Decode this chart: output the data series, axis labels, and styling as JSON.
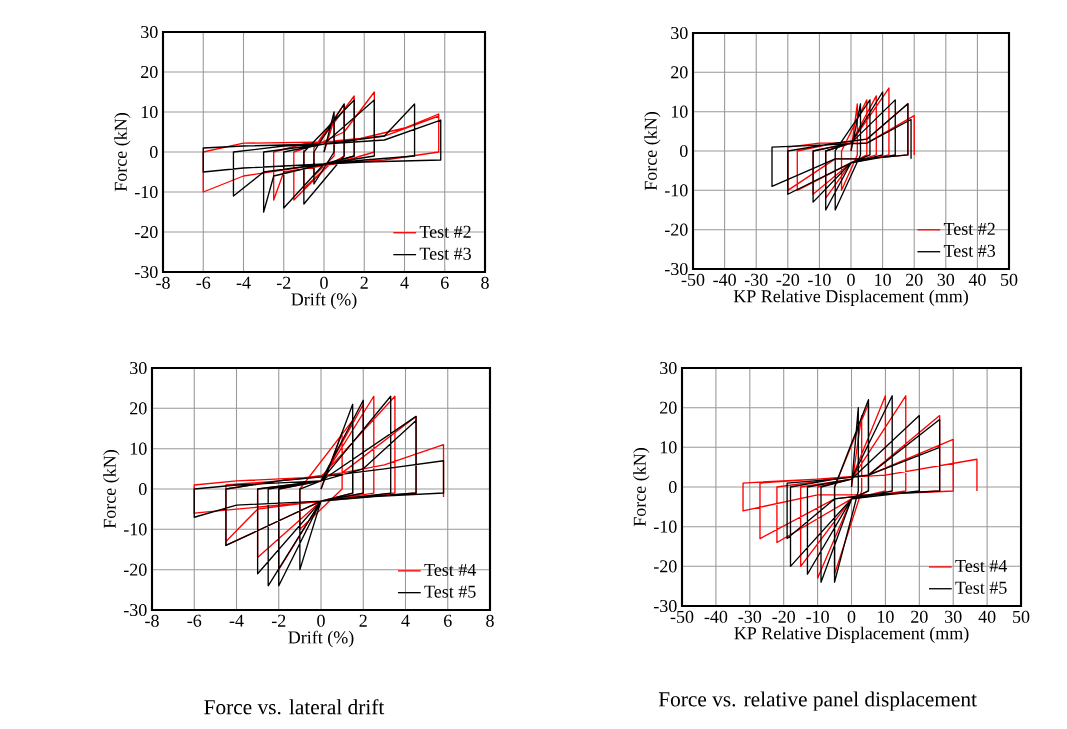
{
  "chart_data": [
    {
      "type": "line",
      "xlabel": "Drift (%)",
      "ylabel": "Force (kN)",
      "xlim": [
        -8,
        8
      ],
      "ylim": [
        -30,
        30
      ],
      "xticks": [
        -8,
        -6,
        -4,
        -2,
        0,
        2,
        4,
        6,
        8
      ],
      "yticks": [
        -30,
        -20,
        -10,
        0,
        10,
        20,
        30
      ],
      "grid": true,
      "legend": "bottom right",
      "series": [
        {
          "name": "Test #2",
          "color": "#ff0000",
          "x": [
            0,
            0.5,
            0.5,
            -0.5,
            -0.5,
            1,
            1,
            0.3,
            -1,
            -1,
            -0.3,
            1.5,
            1.5,
            0.3,
            -1.5,
            -1.5,
            -0.3,
            1,
            2.5,
            2.5,
            0.5,
            -2,
            -2.5,
            -2.5,
            -1,
            1.5,
            4,
            5.7,
            5.7,
            3,
            0,
            -4,
            -6,
            -6,
            -4,
            0,
            3,
            5.7,
            5.7
          ],
          "values": [
            0,
            8,
            -1,
            -6,
            1,
            12,
            -1,
            -3,
            -9,
            1,
            2,
            14,
            -1,
            -3,
            -12,
            0,
            2,
            5,
            15,
            0,
            -3,
            -5,
            -12,
            0,
            2,
            3,
            6,
            9.5,
            0,
            -2,
            -3,
            -6,
            -10,
            0,
            2.2,
            2.5,
            4,
            9,
            6
          ]
        },
        {
          "name": "Test #3",
          "color": "#000000",
          "x": [
            0,
            0.5,
            0.5,
            -0.5,
            -0.5,
            1,
            1,
            -1,
            -1,
            1.5,
            1.5,
            0,
            -2,
            -2,
            0,
            2.5,
            2.5,
            0,
            -2.5,
            -3,
            -3,
            0,
            3,
            4.5,
            4.5,
            2,
            0,
            -3,
            -4.5,
            -4.5,
            -2,
            0,
            3,
            5.8,
            5.8,
            2,
            0,
            -4,
            -6,
            -6,
            -4,
            0
          ],
          "values": [
            0,
            10,
            0,
            -8,
            0,
            12,
            -1,
            -13,
            0,
            13,
            -1,
            -3,
            -14,
            0,
            2,
            13,
            -1,
            -3,
            -6,
            -15,
            0,
            2,
            4,
            12,
            -1,
            -2,
            -3,
            -5,
            -11,
            0,
            1.5,
            2,
            3,
            8,
            -2,
            -2.5,
            -3,
            -4,
            -5,
            1,
            1.5,
            2
          ]
        }
      ]
    },
    {
      "type": "line",
      "xlabel": "KP Relative Displacement (mm)",
      "ylabel": "Force (kN)",
      "xlim": [
        -50,
        50
      ],
      "ylim": [
        -30,
        30
      ],
      "xticks": [
        -50,
        -40,
        -30,
        -20,
        -10,
        0,
        10,
        20,
        30,
        40,
        50
      ],
      "yticks": [
        -30,
        -20,
        -10,
        0,
        10,
        20,
        30
      ],
      "grid": true,
      "legend": "bottom right",
      "series": [
        {
          "name": "Test #2",
          "color": "#ff0000",
          "x": [
            0,
            2,
            2,
            -3,
            -3,
            5,
            5,
            0,
            -8,
            -8,
            0,
            8,
            8,
            0,
            -12,
            -12,
            0,
            12,
            12,
            0,
            -17,
            -17,
            -5,
            5,
            18,
            18,
            5,
            -5,
            -20,
            -20,
            -10,
            5,
            20,
            20
          ],
          "values": [
            0,
            12,
            -1,
            -10,
            0,
            13,
            -1,
            -3,
            -12,
            0,
            2,
            14,
            -1,
            -3,
            -11,
            0,
            2,
            16,
            -1,
            -3,
            -10,
            0,
            2,
            3,
            12,
            -1,
            -2,
            -2,
            -10,
            1,
            2,
            2,
            9,
            -1
          ]
        },
        {
          "name": "Test #3",
          "color": "#000000",
          "x": [
            0,
            3,
            3,
            -5,
            -5,
            6,
            6,
            0,
            -8,
            -8,
            0,
            10,
            10,
            0,
            -12,
            -12,
            0,
            14,
            14,
            0,
            -20,
            -20,
            -5,
            5,
            18,
            18,
            5,
            -5,
            -25,
            -25,
            -10,
            5,
            19,
            19
          ],
          "values": [
            0,
            12,
            -1,
            -15,
            0,
            13,
            -1,
            -3,
            -15,
            0,
            2,
            15,
            -1,
            -3,
            -13,
            0,
            2,
            13,
            -1,
            -3,
            -11,
            0,
            2,
            3,
            12,
            -1,
            -2,
            -2,
            -9,
            1,
            1.5,
            2,
            8,
            -2
          ]
        }
      ]
    },
    {
      "type": "line",
      "xlabel": "Drift (%)",
      "ylabel": "Force (kN)",
      "xlim": [
        -8,
        8
      ],
      "ylim": [
        -30,
        30
      ],
      "xticks": [
        -8,
        -6,
        -4,
        -2,
        0,
        2,
        4,
        6,
        8
      ],
      "yticks": [
        -30,
        -20,
        -10,
        0,
        10,
        20,
        30
      ],
      "grid": true,
      "legend": "bottom right",
      "annotations": [
        "Force vs. lateral drift"
      ],
      "series": [
        {
          "name": "Test #4",
          "color": "#ff0000",
          "x": [
            0,
            1,
            1,
            -1,
            -1,
            1.5,
            1.5,
            0,
            -2,
            -2,
            0,
            2,
            2,
            0,
            -3,
            -3,
            0,
            2.5,
            2.5,
            0,
            -4.5,
            -4.5,
            -2,
            0,
            3.5,
            3.5,
            0,
            -3,
            -4.5,
            -4.5,
            -2,
            1,
            4.5,
            4.5,
            2,
            0,
            -4,
            -6,
            -6,
            -4,
            0,
            3,
            5.8,
            5.8
          ],
          "values": [
            0,
            14,
            0,
            -10,
            0,
            17,
            -1,
            -3,
            -20,
            0,
            2,
            21,
            -1,
            -3,
            -17,
            0,
            2,
            23,
            -1,
            -3,
            -14,
            0,
            2,
            3,
            23,
            -1,
            -3,
            -5,
            -13,
            1,
            2,
            4,
            18,
            -1,
            -2,
            -3,
            -5,
            -6,
            1,
            2,
            3,
            6,
            11,
            -2
          ]
        },
        {
          "name": "Test #5",
          "color": "#000000",
          "x": [
            0,
            1.5,
            1.5,
            0,
            -1,
            -1,
            0,
            2,
            2,
            0,
            -2,
            -2,
            0,
            3.3,
            3.3,
            0,
            -2.5,
            -2.5,
            0,
            4.5,
            4.5,
            0,
            -3,
            -3,
            0,
            2,
            4.5,
            4.5,
            2,
            0,
            -4.5,
            -4.5,
            -2,
            0,
            3,
            5.8,
            5.8,
            2,
            0,
            -4,
            -6,
            -6,
            -4,
            0
          ],
          "values": [
            0,
            21,
            -1,
            -3,
            -20,
            0,
            2,
            22,
            -1,
            -3,
            -24,
            0,
            2,
            23,
            -1,
            -3,
            -24,
            0,
            2,
            18,
            -1,
            -3,
            -21,
            0,
            2,
            5,
            17,
            -1,
            -2,
            -3,
            -14,
            0,
            2,
            3,
            5,
            7,
            -1,
            -2,
            -3,
            -4,
            -7,
            0,
            1,
            2
          ]
        }
      ]
    },
    {
      "type": "line",
      "xlabel": "KP Relative Displacement (mm)",
      "ylabel": "Force (kN)",
      "xlim": [
        -50,
        50
      ],
      "ylim": [
        -30,
        30
      ],
      "xticks": [
        -50,
        -40,
        -30,
        -20,
        -10,
        0,
        10,
        20,
        30,
        40,
        50
      ],
      "yticks": [
        -30,
        -20,
        -10,
        0,
        10,
        20,
        30
      ],
      "grid": true,
      "legend": "bottom right",
      "annotations": [
        "Force vs. relative panel displacement"
      ],
      "series": [
        {
          "name": "Test #4",
          "color": "#ff0000",
          "x": [
            0,
            3,
            3,
            -5,
            -5,
            5,
            5,
            0,
            -10,
            -10,
            0,
            10,
            10,
            0,
            -15,
            -15,
            0,
            16,
            16,
            0,
            -22,
            -22,
            -5,
            5,
            26,
            26,
            5,
            -5,
            -27,
            -27,
            -10,
            5,
            30,
            30,
            5,
            -10,
            -32,
            -32,
            -10,
            10,
            37,
            37
          ],
          "values": [
            0,
            18,
            -1,
            -22,
            0,
            21,
            -1,
            -3,
            -23,
            0,
            2,
            23,
            -1,
            -3,
            -20,
            0,
            2,
            23,
            -1,
            -3,
            -14,
            0,
            2,
            3,
            18,
            -1,
            -2,
            -3,
            -13,
            1,
            2,
            3,
            12,
            -1,
            -2,
            -2,
            -6,
            1,
            2,
            3,
            7,
            -1
          ]
        },
        {
          "name": "Test #5",
          "color": "#000000",
          "x": [
            0,
            2,
            2,
            -5,
            -5,
            5,
            5,
            0,
            -9,
            -9,
            0,
            12,
            12,
            0,
            -13,
            -13,
            0,
            20,
            20,
            0,
            -18,
            -18,
            -5,
            5,
            26,
            26,
            5,
            -5,
            -19,
            -19,
            -5,
            5,
            26,
            26
          ],
          "values": [
            0,
            20,
            -1,
            -24,
            0,
            22,
            -1,
            -3,
            -24,
            0,
            2,
            23,
            -1,
            -3,
            -22,
            0,
            2,
            18,
            -1,
            -3,
            -20,
            0,
            2,
            3,
            17,
            -1,
            -2,
            -3,
            -13,
            1,
            2,
            3,
            10,
            -1
          ]
        }
      ]
    }
  ]
}
